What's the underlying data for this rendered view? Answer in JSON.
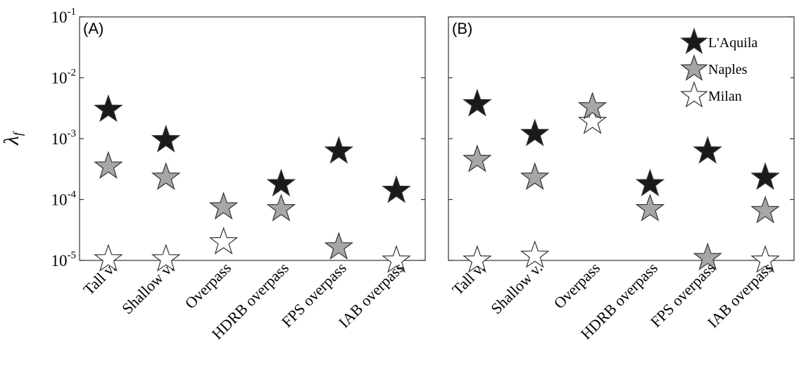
{
  "chart_data": [
    {
      "type": "scatter",
      "panel_label": "(A)",
      "categories": [
        "Tall v.",
        "Shallow v.",
        "Overpass",
        "HDRB overpass",
        "FPS overpass",
        "IAB overpass"
      ],
      "ylabel": "λ",
      "ylabel_sub": "f",
      "yscale": "log",
      "ylim": [
        1e-05,
        0.1
      ],
      "yticks": [
        {
          "base": "10",
          "exp": "-5"
        },
        {
          "base": "10",
          "exp": "-4"
        },
        {
          "base": "10",
          "exp": "-3"
        },
        {
          "base": "10",
          "exp": "-2"
        },
        {
          "base": "10",
          "exp": "-1"
        }
      ],
      "grid": true,
      "series": [
        {
          "name": "L'Aquila",
          "color": "#1a1a1a",
          "values": [
            0.003,
            0.00095,
            null,
            0.00018,
            0.00062,
            0.00014
          ]
        },
        {
          "name": "Naples",
          "color": "#a6a6a6",
          "values": [
            0.00035,
            0.00023,
            7.5e-05,
            7e-05,
            1.65e-05,
            null
          ]
        },
        {
          "name": "Milan",
          "color": "#ffffff",
          "values": [
            1.05e-05,
            1.05e-05,
            2e-05,
            null,
            null,
            1e-05
          ]
        }
      ]
    },
    {
      "type": "scatter",
      "panel_label": "(B)",
      "categories": [
        "Tall v.",
        "Shallow v.",
        "Overpass",
        "HDRB overpass",
        "FPS overpass",
        "IAB overpass"
      ],
      "yscale": "log",
      "ylim": [
        1e-05,
        0.1
      ],
      "grid": true,
      "legend_position": "top-right",
      "series": [
        {
          "name": "L'Aquila",
          "color": "#1a1a1a",
          "values": [
            0.0037,
            0.0012,
            null,
            0.00018,
            0.00062,
            0.00023
          ]
        },
        {
          "name": "Naples",
          "color": "#a6a6a6",
          "values": [
            0.00045,
            0.00023,
            0.0033,
            7e-05,
            1.1e-05,
            6.5e-05
          ]
        },
        {
          "name": "Milan",
          "color": "#ffffff",
          "values": [
            1e-05,
            1.2e-05,
            0.0019,
            null,
            null,
            1e-05
          ]
        }
      ]
    }
  ]
}
